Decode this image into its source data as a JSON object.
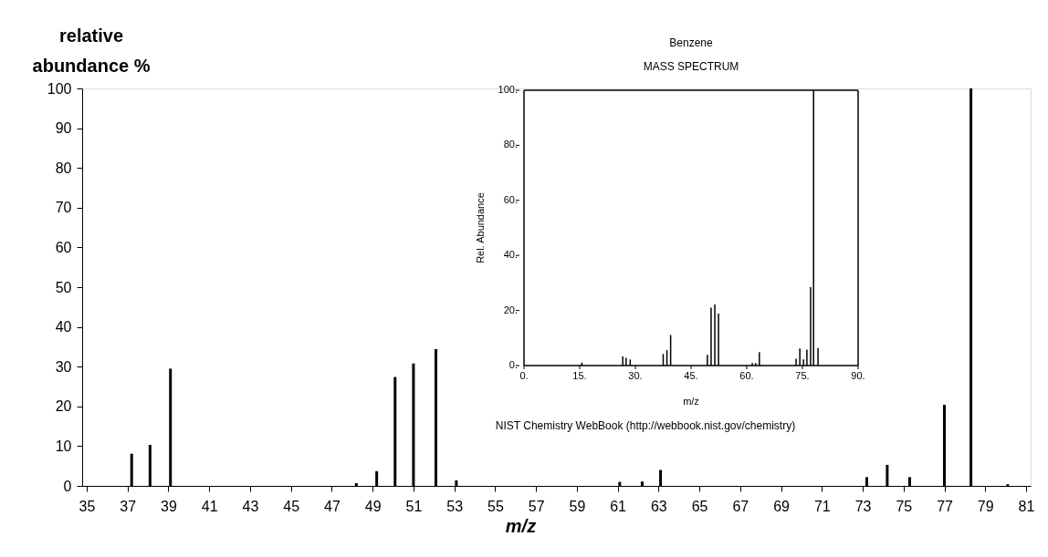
{
  "chart_data": [
    {
      "type": "bar",
      "xlabel": "m/z",
      "ylabel": "relative abundance %",
      "x": [
        37.2,
        38.1,
        39.1,
        48.2,
        49.2,
        50.1,
        51.0,
        52.1,
        53.1,
        61.1,
        62.2,
        63.1,
        73.2,
        74.2,
        75.3,
        77.0,
        78.3,
        80.1
      ],
      "values": [
        8.1,
        10.3,
        29.5,
        0.7,
        3.7,
        27.4,
        30.8,
        34.4,
        1.4,
        1.0,
        1.1,
        4.0,
        2.2,
        5.3,
        2.2,
        20.4,
        100,
        0.4
      ],
      "color": "#000000",
      "xlim": [
        35,
        81
      ],
      "xticks": [
        35,
        37,
        39,
        41,
        43,
        45,
        47,
        49,
        51,
        53,
        55,
        57,
        59,
        61,
        63,
        65,
        67,
        69,
        71,
        73,
        75,
        77,
        79,
        81
      ],
      "ylim": [
        0,
        100
      ],
      "yticks": [
        0,
        10,
        20,
        30,
        40,
        50,
        60,
        70,
        80,
        90,
        100
      ],
      "grid": false
    },
    {
      "type": "bar",
      "title": "Benzene",
      "subtitle": "MASS SPECTRUM",
      "xlabel": "m/z",
      "ylabel": "Rel. Abundance",
      "annotations": [
        "NIST Chemistry WebBook (http://webbook.nist.gov/chemistry)"
      ],
      "x": [
        15.6,
        26.6,
        27.5,
        28.6,
        37.5,
        38.5,
        39.5,
        49.4,
        50.4,
        51.4,
        52.4,
        61.5,
        62.4,
        63.4,
        73.3,
        74.3,
        75.3,
        76.2,
        77.2,
        78.0,
        79.2
      ],
      "values": [
        1.1,
        3.3,
        2.8,
        2.2,
        4.2,
        5.6,
        11.1,
        3.9,
        21.0,
        22.2,
        18.9,
        0.9,
        0.9,
        4.9,
        2.5,
        6.2,
        2.2,
        5.8,
        28.5,
        100,
        6.4
      ],
      "color": "#000000",
      "xlim": [
        0,
        90
      ],
      "xticks": [
        {
          "value": 0,
          "label": "0."
        },
        {
          "value": 15,
          "label": "15."
        },
        {
          "value": 30,
          "label": "30."
        },
        {
          "value": 45,
          "label": "45."
        },
        {
          "value": 60,
          "label": "60."
        },
        {
          "value": 75,
          "label": "75."
        },
        {
          "value": 90,
          "label": "90."
        }
      ],
      "ylim": [
        0,
        100
      ],
      "yticks": [
        {
          "value": 0,
          "label": "0."
        },
        {
          "value": 20,
          "label": "20."
        },
        {
          "value": 40,
          "label": "40."
        },
        {
          "value": 60,
          "label": "60."
        },
        {
          "value": 80,
          "label": "80."
        },
        {
          "value": 100,
          "label": "100."
        }
      ],
      "grid": false
    }
  ]
}
